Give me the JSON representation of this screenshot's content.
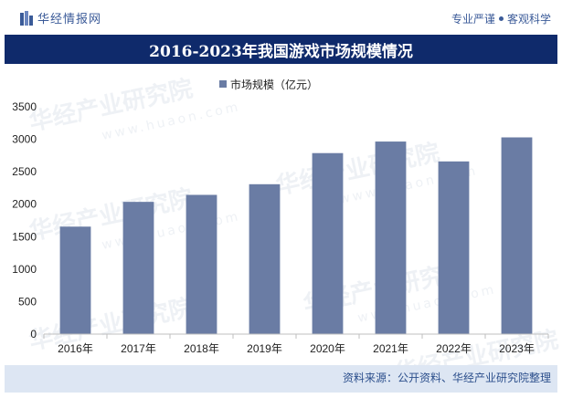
{
  "header": {
    "brand": "华经情报网",
    "tagline_left": "专业严谨",
    "tagline_right": "客观科学"
  },
  "footer": {
    "source": "资料来源：公开资料、华经产业研究院整理"
  },
  "watermark": {
    "text": "华经产业研究院",
    "url": "www.huaon.com"
  },
  "colors": {
    "bar": "#6a7ca4",
    "title_bg": "#0f2a6b",
    "brand": "#3a5a98"
  },
  "chart_data": {
    "type": "bar",
    "title": "2016-2023年我国游戏市场规模情况",
    "categories": [
      "2016年",
      "2017年",
      "2018年",
      "2019年",
      "2020年",
      "2021年",
      "2022年",
      "2023年"
    ],
    "series": [
      {
        "name": "市场规模（亿元）",
        "values": [
          1655,
          2036,
          2144,
          2308,
          2787,
          2965,
          2659,
          3029
        ]
      }
    ],
    "ylim": [
      0,
      3500
    ],
    "yticks": [
      0,
      500,
      1000,
      1500,
      2000,
      2500,
      3000,
      3500
    ],
    "legend_position": "top-center",
    "xlabel": "",
    "ylabel": ""
  }
}
